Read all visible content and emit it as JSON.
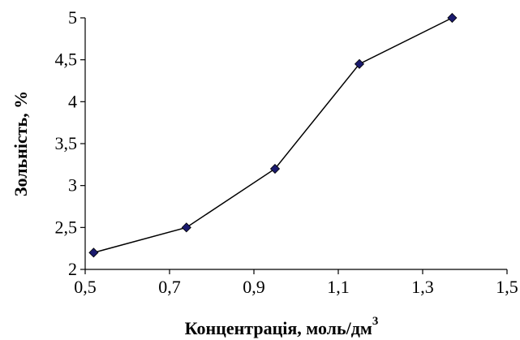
{
  "chart_data": {
    "type": "line",
    "xlabel": "Концентрація, моль/дм",
    "xlabel_superscript": "3",
    "ylabel": "Зольність,  %",
    "xlim": [
      0.5,
      1.5
    ],
    "ylim": [
      2,
      5
    ],
    "x_ticks": [
      "0,5",
      "0,7",
      "0,9",
      "1,1",
      "1,3",
      "1,5"
    ],
    "y_ticks": [
      "2",
      "2,5",
      "3",
      "3,5",
      "4",
      "4,5",
      "5"
    ],
    "grid": false,
    "legend": "none",
    "series": [
      {
        "x": [
          0.52,
          0.74,
          0.95,
          1.15,
          1.37
        ],
        "y": [
          2.2,
          2.5,
          3.2,
          4.45,
          5.0
        ],
        "marker": "diamond",
        "marker_color": "#1a1a6e",
        "line_color": "#000000"
      }
    ]
  }
}
